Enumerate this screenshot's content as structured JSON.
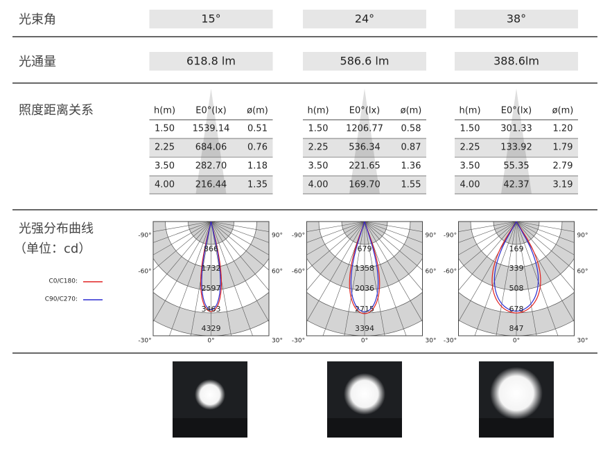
{
  "beam_angle": {
    "label": "光束角",
    "values": [
      "15°",
      "24°",
      "38°"
    ]
  },
  "luminous_flux": {
    "label": "光通量",
    "values": [
      "618.8 lm",
      "586.6 lm",
      "388.6lm"
    ]
  },
  "illuminance": {
    "label": "照度距离关系",
    "header": [
      "h(m)",
      "E0°(lx)",
      "ø(m)"
    ],
    "tables": [
      [
        [
          "1.50",
          "1539.14",
          "0.51"
        ],
        [
          "2.25",
          "684.06",
          "0.76"
        ],
        [
          "3.50",
          "282.70",
          "1.18"
        ],
        [
          "4.00",
          "216.44",
          "1.35"
        ]
      ],
      [
        [
          "1.50",
          "1206.77",
          "0.58"
        ],
        [
          "2.25",
          "536.34",
          "0.87"
        ],
        [
          "3.50",
          "221.65",
          "1.36"
        ],
        [
          "4.00",
          "169.70",
          "1.55"
        ]
      ],
      [
        [
          "1.50",
          "301.33",
          "1.20"
        ],
        [
          "2.25",
          "133.92",
          "1.79"
        ],
        [
          "3.50",
          "55.35",
          "2.79"
        ],
        [
          "4.00",
          "42.37",
          "3.19"
        ]
      ]
    ]
  },
  "intensity": {
    "label": "光强分布曲线",
    "unit": "（单位：cd）",
    "legend": [
      "C0/C180:",
      "C90/C270:"
    ],
    "angle_labels": [
      "-90°",
      "90°",
      "-60°",
      "60°",
      "-30°",
      "0°",
      "30°"
    ],
    "diagrams": [
      [
        "866",
        "1732",
        "2597",
        "3463",
        "4329"
      ],
      [
        "679",
        "1358",
        "2036",
        "2715",
        "3394"
      ],
      [
        "169",
        "339",
        "508",
        "678",
        "847"
      ]
    ]
  }
}
